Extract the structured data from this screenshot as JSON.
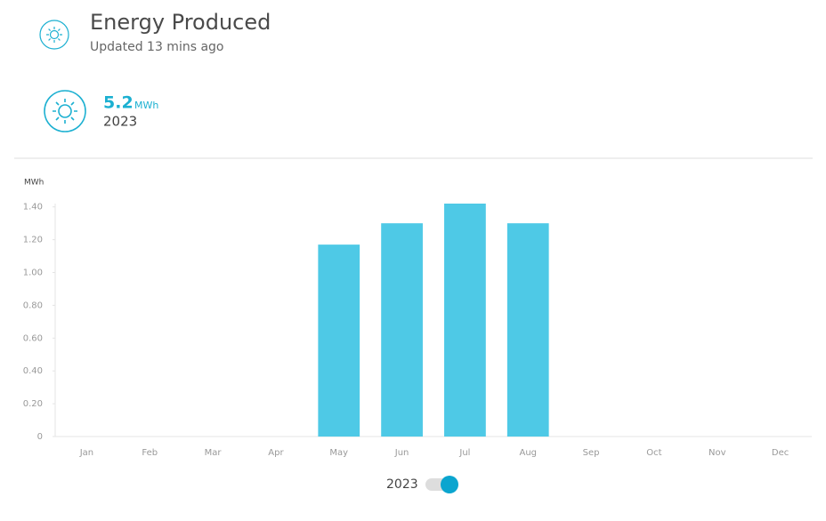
{
  "header": {
    "title": "Energy Produced",
    "subtitle": "Updated 13 mins ago"
  },
  "summary": {
    "value": 5.2,
    "unit": "MWh",
    "year": "2023"
  },
  "chart_data": {
    "type": "bar",
    "y_label": "MWh",
    "categories": [
      "Jan",
      "Feb",
      "Mar",
      "Apr",
      "May",
      "Jun",
      "Jul",
      "Aug",
      "Sep",
      "Oct",
      "Nov",
      "Dec"
    ],
    "values": [
      null,
      null,
      null,
      null,
      1.17,
      1.3,
      1.42,
      1.3,
      null,
      null,
      null,
      null
    ],
    "color": "#4ec9e6",
    "ylim": [
      0,
      1.42
    ],
    "yticks": [
      0,
      {
        "value": 0.2,
        "label": "0.20"
      },
      {
        "value": 0.4,
        "label": "0.40"
      },
      {
        "value": 0.6,
        "label": "0.60"
      },
      {
        "value": 0.8,
        "label": "0.80"
      },
      {
        "value": 1.0,
        "label": "1.00"
      },
      {
        "value": 1.2,
        "label": "1.20"
      },
      {
        "value": 1.4,
        "label": "1.40"
      }
    ],
    "grid": false
  },
  "toggle": {
    "label": "2023"
  }
}
